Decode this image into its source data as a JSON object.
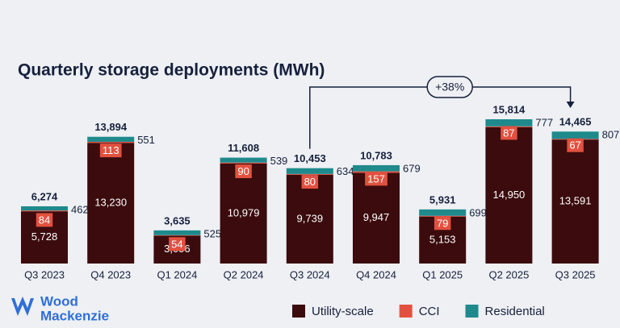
{
  "chart_data": {
    "type": "stacked-bar",
    "title": "Quarterly storage deployments (MWh)",
    "categories": [
      "Q3 2023",
      "Q4 2023",
      "Q1 2024",
      "Q2 2024",
      "Q3 2024",
      "Q4 2024",
      "Q1 2025",
      "Q2 2025",
      "Q3 2025"
    ],
    "series": [
      {
        "name": "Utility-scale",
        "color": "#3b0b0d",
        "values": [
          5728,
          13230,
          3056,
          10979,
          9739,
          9947,
          5153,
          14950,
          13591
        ],
        "value_labels": [
          "5,728",
          "13,230",
          "3,056",
          "10,979",
          "9,739",
          "9,947",
          "5,153",
          "14,950",
          "13,591"
        ]
      },
      {
        "name": "CCI",
        "color": "#e2513f",
        "values": [
          84,
          113,
          54,
          90,
          80,
          157,
          79,
          87,
          67
        ]
      },
      {
        "name": "Residential",
        "color": "#1f8a8c",
        "values": [
          462,
          551,
          525,
          539,
          634,
          679,
          699,
          777,
          807
        ]
      }
    ],
    "totals": [
      6274,
      13894,
      3635,
      11608,
      10453,
      10783,
      5931,
      15814,
      14465
    ],
    "total_labels": [
      "6,274",
      "13,894",
      "3,635",
      "11,608",
      "10,453",
      "10,783",
      "5,931",
      "15,814",
      "14,465"
    ],
    "annotation": "+38%",
    "legend": "bottom-right"
  },
  "logo": {
    "line1": "Wood",
    "line2": "Mackenzie"
  }
}
